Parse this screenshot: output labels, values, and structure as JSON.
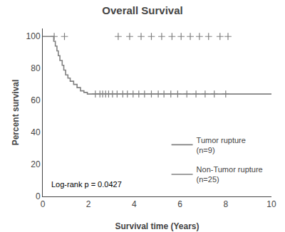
{
  "chart_data": {
    "type": "step",
    "title": "Overall Survival",
    "xlabel": "Survival time (Years)",
    "ylabel": "Percent survival",
    "xlim": [
      0,
      10
    ],
    "ylim": [
      0,
      105
    ],
    "xticks": [
      0,
      2,
      4,
      6,
      8,
      10
    ],
    "yticks": [
      0,
      20,
      40,
      60,
      80,
      100
    ],
    "grid": false,
    "legend": "lower right",
    "annotations": [
      "Log-rank p = 0.0427"
    ],
    "series": [
      {
        "name": "Tumor rupture\n(n=9)",
        "color": "#808080",
        "x": [
          0,
          0.42,
          0.48,
          0.55,
          0.62,
          0.68,
          0.75,
          0.85,
          0.92,
          1.0,
          1.1,
          1.2,
          1.35,
          1.5,
          1.65,
          1.8,
          1.95,
          2.1,
          2.25,
          10.0
        ],
        "values": [
          100,
          100,
          97,
          94,
          91,
          88,
          85,
          82,
          79,
          76,
          74,
          72,
          70,
          68,
          66,
          65,
          64,
          64,
          64,
          64
        ],
        "censored": [
          {
            "x": [
              2.3,
              2.5,
              2.62,
              2.75,
              2.88,
              3.05,
              3.25,
              3.5,
              3.7,
              3.95,
              4.2,
              4.45,
              4.75,
              5.05,
              5.3,
              5.6,
              5.9,
              6.3,
              6.7,
              7.1,
              7.5,
              8.0
            ],
            "y": 64
          },
          {
            "x": [
              0.5,
              0.95,
              3.3,
              3.8,
              4.3,
              4.75,
              5.2,
              5.65,
              6.05,
              6.45,
              6.85,
              7.25,
              7.75,
              8.1
            ],
            "y": 100
          }
        ]
      },
      {
        "name": "Non-Tumor rupture\n(n=25)",
        "color": "#808080",
        "x": [],
        "values": []
      }
    ]
  }
}
